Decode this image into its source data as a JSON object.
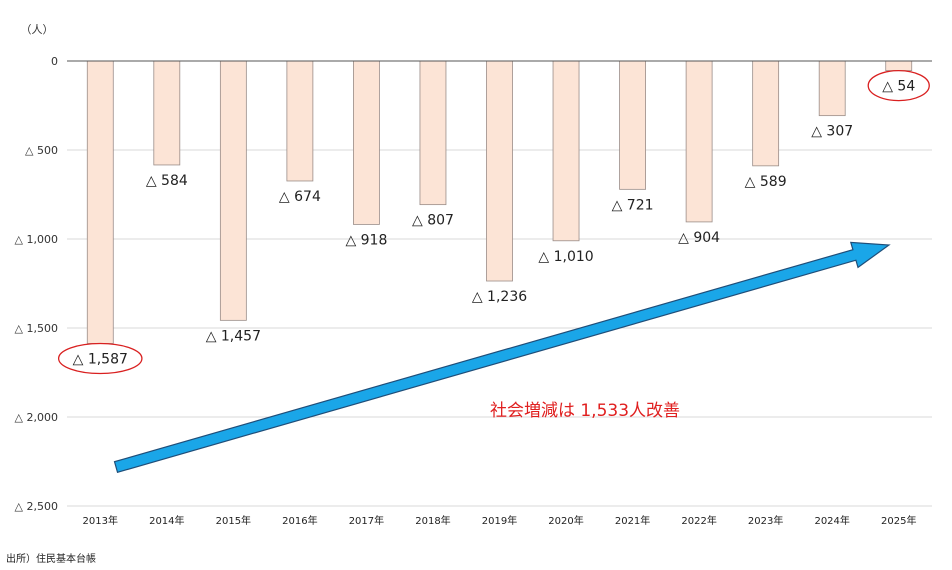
{
  "chart_data": {
    "type": "bar",
    "title": "",
    "xlabel": "",
    "ylabel": "",
    "unit_label": "（人）",
    "categories": [
      "2013年",
      "2014年",
      "2015年",
      "2016年",
      "2017年",
      "2018年",
      "2019年",
      "2020年",
      "2021年",
      "2022年",
      "2023年",
      "2024年",
      "2025年"
    ],
    "values": [
      -1587,
      -584,
      -1457,
      -674,
      -918,
      -807,
      -1236,
      -1010,
      -721,
      -904,
      -589,
      -307,
      -54
    ],
    "value_labels": [
      "△ 1,587",
      "△ 584",
      "△ 1,457",
      "△ 674",
      "△ 918",
      "△ 807",
      "△ 1,236",
      "△ 1,010",
      "△ 721",
      "△ 904",
      "△ 589",
      "△ 307",
      "△ 54"
    ],
    "ylim": [
      -2500,
      0
    ],
    "yticks": [
      0,
      -500,
      -1000,
      -1500,
      -2000,
      -2500
    ],
    "ytick_labels": [
      "0",
      "△ 500",
      "△ 1,000",
      "△ 1,500",
      "△ 2,000",
      "△ 2,500"
    ],
    "grid": true,
    "highlighted_categories": [
      "2013年",
      "2025年"
    ],
    "annotation": "社会増減は 1,533人改善",
    "trend_arrow": "upward",
    "source": "出所）住民基本台帳",
    "colors": {
      "bar_fill": "#fce4d6",
      "bar_stroke": "#9a8d88",
      "grid": "#d9d9d9",
      "axis": "#555555",
      "arrow_fill": "#1aa6e8",
      "arrow_stroke": "#1f4e79",
      "highlight": "#d92020",
      "annotation": "#e02020"
    }
  }
}
